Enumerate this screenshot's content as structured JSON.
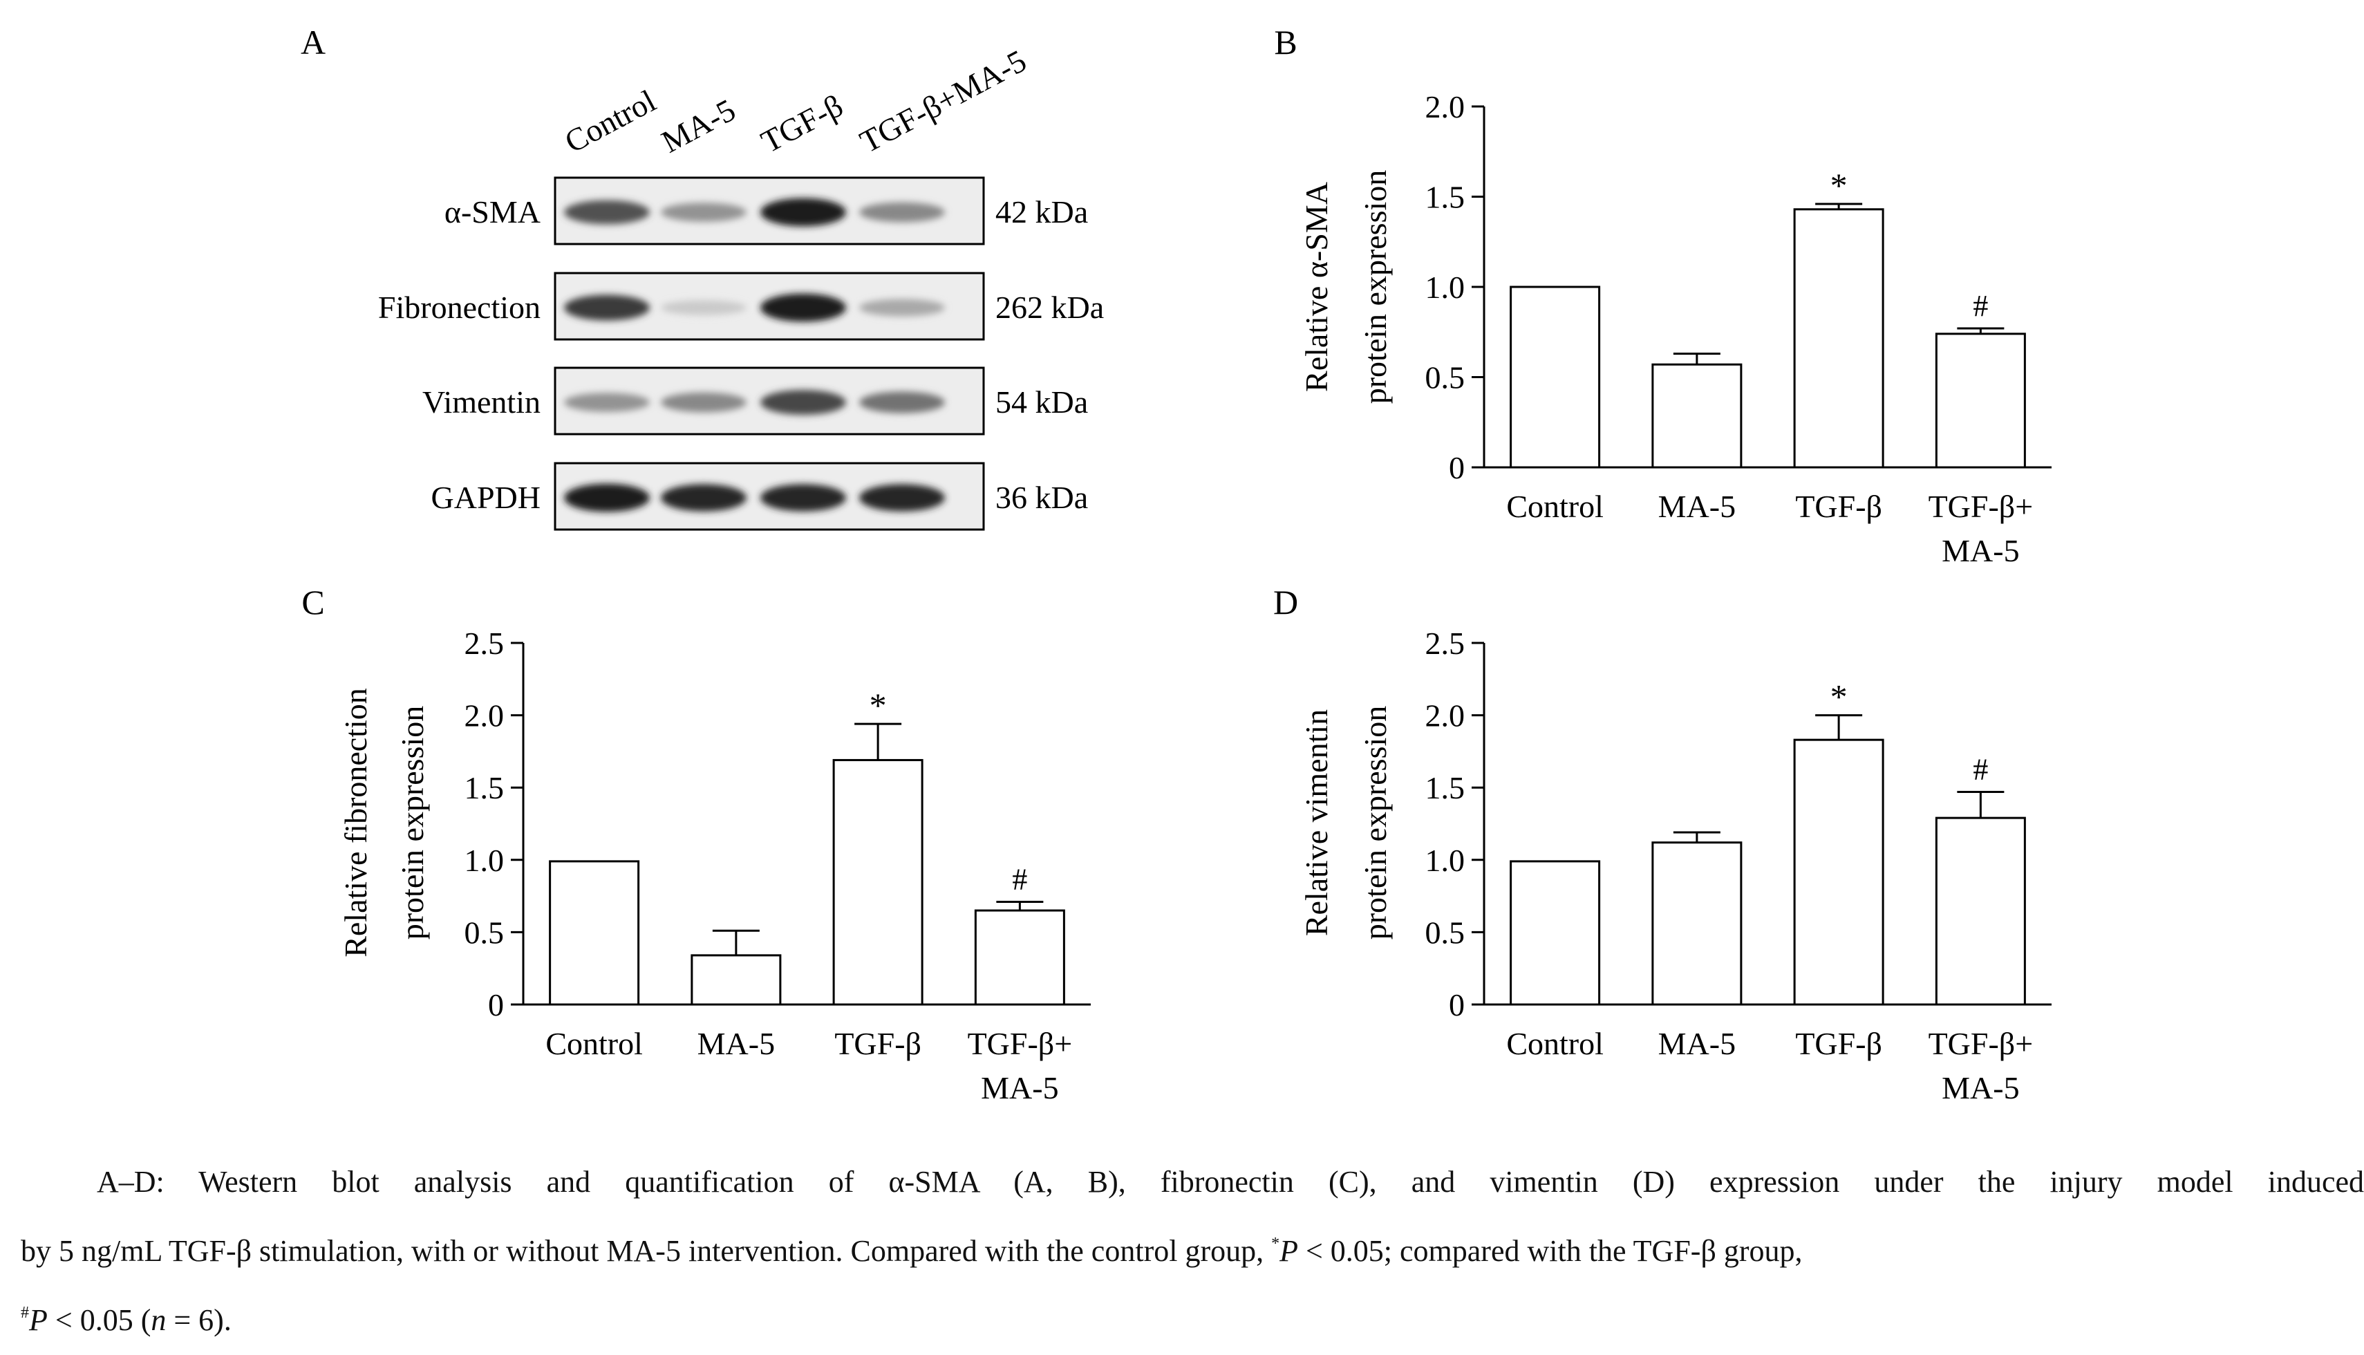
{
  "panels": {
    "A": {
      "label": "A",
      "lanes": [
        "Control",
        "MA-5",
        "TGF-β",
        "TGF-β+MA-5"
      ],
      "rows": [
        {
          "protein": "α-SMA",
          "size": "42 kDa",
          "intensities": [
            0.7,
            0.4,
            0.95,
            0.45
          ]
        },
        {
          "protein": "Fibronection",
          "size": "262 kDa",
          "intensities": [
            0.8,
            0.15,
            0.95,
            0.3
          ]
        },
        {
          "protein": "Vimentin",
          "size": "54 kDa",
          "intensities": [
            0.4,
            0.45,
            0.75,
            0.55
          ]
        },
        {
          "protein": "GAPDH",
          "size": "36 kDa",
          "intensities": [
            0.95,
            0.9,
            0.9,
            0.9
          ]
        }
      ]
    }
  },
  "chart_data": [
    {
      "panel": "B",
      "type": "bar",
      "categories": [
        "Control",
        "MA-5",
        "TGF-β",
        "TGF-β+\nMA-5"
      ],
      "values": [
        1.0,
        0.57,
        1.43,
        0.74
      ],
      "errors": [
        0,
        0.06,
        0.03,
        0.03
      ],
      "markers": [
        "",
        "",
        "*",
        "#"
      ],
      "ylabel": [
        "Relative α-SMA",
        "protein expression"
      ],
      "ylim": [
        0,
        2.0
      ],
      "yticks": [
        "0",
        "0.5",
        "1.0",
        "1.5",
        "2.0"
      ],
      "ytick_values": [
        0,
        0.5,
        1.0,
        1.5,
        2.0
      ]
    },
    {
      "panel": "C",
      "type": "bar",
      "categories": [
        "Control",
        "MA-5",
        "TGF-β",
        "TGF-β+\nMA-5"
      ],
      "values": [
        0.99,
        0.34,
        1.69,
        0.65
      ],
      "errors": [
        0,
        0.17,
        0.25,
        0.06
      ],
      "markers": [
        "",
        "",
        "*",
        "#"
      ],
      "ylabel": [
        "Relative fibronection",
        "protein expression"
      ],
      "ylim": [
        0,
        2.5
      ],
      "yticks": [
        "0",
        "0.5",
        "1.0",
        "1.5",
        "2.0",
        "2.5"
      ],
      "ytick_values": [
        0,
        0.5,
        1.0,
        1.5,
        2.0,
        2.5
      ]
    },
    {
      "panel": "D",
      "type": "bar",
      "categories": [
        "Control",
        "MA-5",
        "TGF-β",
        "TGF-β+\nMA-5"
      ],
      "values": [
        0.99,
        1.12,
        1.83,
        1.29
      ],
      "errors": [
        0,
        0.07,
        0.17,
        0.18
      ],
      "markers": [
        "",
        "",
        "*",
        "#"
      ],
      "ylabel": [
        "Relative vimentin",
        "protein expression"
      ],
      "ylim": [
        0,
        2.5
      ],
      "yticks": [
        "0",
        "0.5",
        "1.0",
        "1.5",
        "2.0",
        "2.5"
      ],
      "ytick_values": [
        0,
        0.5,
        1.0,
        1.5,
        2.0,
        2.5
      ]
    }
  ],
  "caption": {
    "line1": "A–D: Western blot analysis and quantification of α-SMA (A, B), fibronectin (C), and vimentin (D) expression under the injury model induced",
    "line2a": "by 5 ng/mL TGF-β stimulation, with or without MA-5 intervention. Compared with the control group, ",
    "sym1": "*",
    "p1": "P",
    "line2b": " < 0.05; compared with the TGF-β group,",
    "sym2": "#",
    "p2": "P",
    "line3a": " < 0.05 (",
    "n": "n",
    "line3b": " = 6)."
  }
}
